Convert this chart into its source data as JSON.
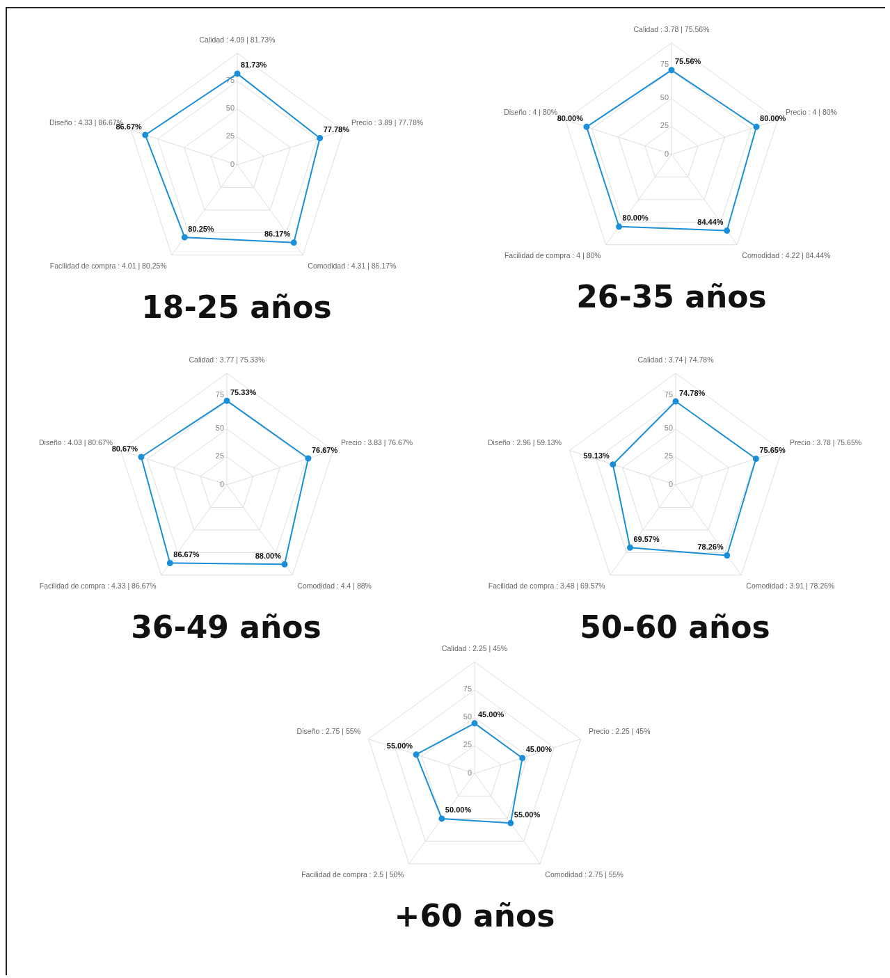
{
  "chart_data": [
    {
      "type": "radar",
      "title": "18-25 años",
      "categories": [
        "Calidad : 4.09 | 81.73%",
        "Precio : 3.89 | 77.78%",
        "Comodidad : 4.31 | 86.17%",
        "Facilidad de compra : 4.01 | 80.25%",
        "Diseño : 4.33 | 86.67%"
      ],
      "series": [
        {
          "color": "#1a8fd8",
          "values": [
            81.73,
            77.78,
            86.17,
            80.25,
            86.67
          ],
          "value_labels": [
            "81.73%",
            "77.78%",
            "86.17%",
            "80.25%",
            "86.67%"
          ]
        }
      ],
      "ylim": [
        0,
        100
      ],
      "yticks": [
        0,
        25,
        50,
        75
      ],
      "grid": true,
      "marker": "circle"
    },
    {
      "type": "radar",
      "title": "26-35 años",
      "categories": [
        "Calidad : 3.78 | 75.56%",
        "Precio : 4 | 80%",
        "Comodidad : 4.22 | 84.44%",
        "Facilidad de compra : 4 | 80%",
        "Diseño : 4 | 80%"
      ],
      "series": [
        {
          "color": "#1a8fd8",
          "values": [
            75.56,
            80,
            84.44,
            80,
            80
          ],
          "value_labels": [
            "75.56%",
            "80.00%",
            "84.44%",
            "80.00%",
            "80.00%"
          ]
        }
      ],
      "ylim": [
        0,
        100
      ],
      "yticks": [
        0,
        25,
        50,
        75
      ],
      "grid": true,
      "marker": "circle"
    },
    {
      "type": "radar",
      "title": "36-49 años",
      "categories": [
        "Calidad : 3.77 | 75.33%",
        "Precio : 3.83 | 76.67%",
        "Comodidad : 4.4 | 88%",
        "Facilidad de compra : 4.33 | 86.67%",
        "Diseño : 4.03 | 80.67%"
      ],
      "series": [
        {
          "color": "#1a8fd8",
          "values": [
            75.33,
            76.67,
            88,
            86.67,
            80.67
          ],
          "value_labels": [
            "75.33%",
            "76.67%",
            "88.00%",
            "86.67%",
            "80.67%"
          ]
        }
      ],
      "ylim": [
        0,
        100
      ],
      "yticks": [
        0,
        25,
        50,
        75
      ],
      "grid": true,
      "marker": "circle"
    },
    {
      "type": "radar",
      "title": "50-60 años",
      "categories": [
        "Calidad : 3.74 | 74.78%",
        "Precio : 3.78 | 75.65%",
        "Comodidad : 3.91 | 78.26%",
        "Facilidad de compra : 3.48 | 69.57%",
        "Diseño : 2.96 | 59.13%"
      ],
      "series": [
        {
          "color": "#1a8fd8",
          "values": [
            74.78,
            75.65,
            78.26,
            69.57,
            59.13
          ],
          "value_labels": [
            "74.78%",
            "75.65%",
            "78.26%",
            "69.57%",
            "59.13%"
          ]
        }
      ],
      "ylim": [
        0,
        100
      ],
      "yticks": [
        0,
        25,
        50,
        75
      ],
      "grid": true,
      "marker": "circle"
    },
    {
      "type": "radar",
      "title": "+60 años",
      "categories": [
        "Calidad : 2.25 | 45%",
        "Precio : 2.25 | 45%",
        "Comodidad : 2.75 | 55%",
        "Facilidad de compra : 2.5 | 50%",
        "Diseño : 2.75 | 55%"
      ],
      "series": [
        {
          "color": "#1a8fd8",
          "values": [
            45,
            45,
            55,
            50,
            55
          ],
          "value_labels": [
            "45.00%",
            "45.00%",
            "55.00%",
            "50.00%",
            "55.00%"
          ]
        }
      ],
      "ylim": [
        0,
        100
      ],
      "yticks": [
        0,
        25,
        50,
        75
      ],
      "grid": true,
      "marker": "circle"
    }
  ]
}
